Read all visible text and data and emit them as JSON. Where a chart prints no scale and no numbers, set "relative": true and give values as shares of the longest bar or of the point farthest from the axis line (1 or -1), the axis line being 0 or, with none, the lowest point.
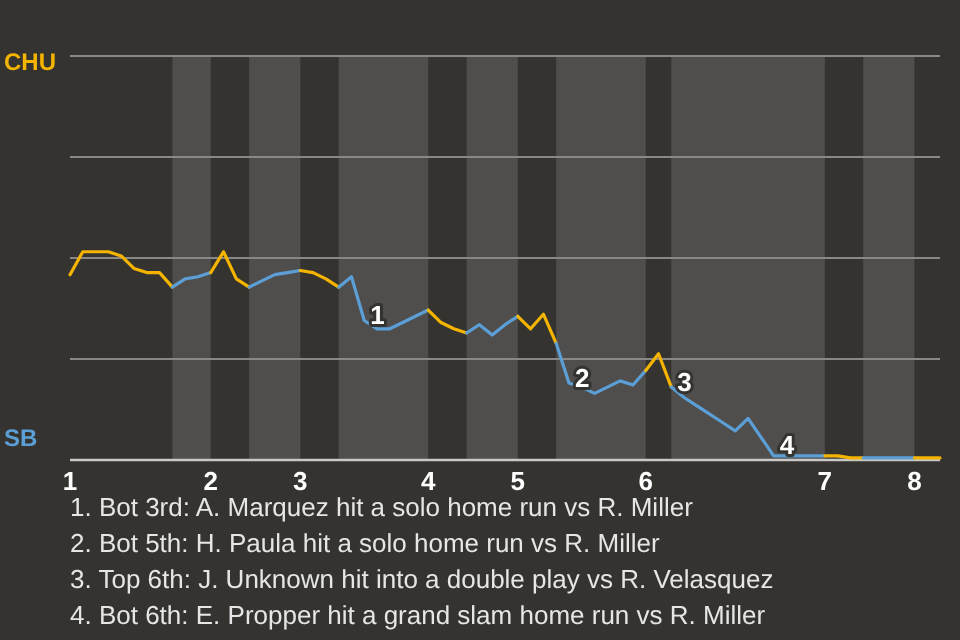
{
  "chart_data": {
    "type": "line",
    "relative": true,
    "marker": "none",
    "ref_lines": [
      {
        "axis": "y",
        "value": 0.485,
        "color": "#8a8886"
      },
      {
        "axis": "y",
        "value": 0.97,
        "color": "#8a8886"
      },
      {
        "axis": "y",
        "value": 1.455,
        "color": "#8a8886"
      },
      {
        "axis": "y",
        "value": 1.94,
        "color": "#8a8886"
      }
    ],
    "categories": [
      "1",
      null,
      null,
      null,
      null,
      null,
      null,
      null,
      null,
      null,
      null,
      "2",
      null,
      null,
      null,
      null,
      null,
      null,
      "3",
      null,
      null,
      null,
      null,
      null,
      null,
      null,
      null,
      null,
      "4",
      null,
      null,
      null,
      null,
      null,
      null,
      "5",
      null,
      null,
      null,
      null,
      null,
      null,
      null,
      null,
      null,
      "6",
      null,
      null,
      null,
      null,
      null,
      null,
      null,
      null,
      null,
      null,
      null,
      null,
      null,
      "7",
      null,
      null,
      null,
      null,
      null,
      null,
      "8",
      null,
      null
    ],
    "series": [
      {
        "name": "CHU",
        "color": "#f5b400",
        "values": [
          0.89,
          1,
          1,
          1,
          0.98,
          0.92,
          0.9,
          0.9,
          0.83,
          null,
          null,
          null,
          null,
          null,
          null,
          null,
          null,
          null,
          null,
          null,
          null,
          null,
          null,
          null,
          null,
          null,
          null,
          null,
          null,
          null,
          null,
          null,
          null,
          null,
          null,
          null,
          null,
          null,
          null,
          null,
          null,
          null,
          null,
          null,
          null,
          null,
          null,
          null,
          null,
          null,
          null,
          null,
          null,
          null,
          null,
          null,
          null,
          null,
          null,
          null,
          null,
          null,
          null,
          null,
          null,
          null,
          null,
          null,
          null
        ]
      },
      {
        "name": "SB",
        "color": "#5b9fd6",
        "values": [
          null,
          null,
          null,
          null,
          null,
          null,
          null,
          null,
          0.83,
          0.87,
          0.88,
          0.9,
          null,
          null,
          null,
          null,
          null,
          null,
          null,
          null,
          null,
          null,
          null,
          null,
          null,
          null,
          null,
          null,
          null,
          null,
          null,
          null,
          null,
          null,
          null,
          null,
          null,
          null,
          null,
          null,
          null,
          null,
          null,
          null,
          null,
          null,
          null,
          null,
          null,
          null,
          null,
          null,
          null,
          null,
          null,
          null,
          null,
          null,
          null,
          null,
          null,
          null,
          null,
          null,
          null,
          null,
          null,
          null,
          null
        ]
      },
      {
        "color": "#f5b400",
        "values": [
          null,
          null,
          null,
          null,
          null,
          null,
          null,
          null,
          null,
          null,
          null,
          0.9,
          1,
          0.87,
          0.83,
          null,
          null,
          null,
          null,
          null,
          null,
          null,
          null,
          null,
          null,
          null,
          null,
          null,
          null,
          null,
          null,
          null,
          null,
          null,
          null,
          null,
          null,
          null,
          null,
          null,
          null,
          null,
          null,
          null,
          null,
          null,
          null,
          null,
          null,
          null,
          null,
          null,
          null,
          null,
          null,
          null,
          null,
          null,
          null,
          null,
          null,
          null,
          null,
          null,
          null,
          null,
          null,
          null,
          null
        ]
      },
      {
        "color": "#5b9fd6",
        "values": [
          null,
          null,
          null,
          null,
          null,
          null,
          null,
          null,
          null,
          null,
          null,
          null,
          null,
          null,
          0.83,
          0.86,
          0.89,
          0.9,
          0.91,
          null,
          null,
          null,
          null,
          null,
          null,
          null,
          null,
          null,
          null,
          null,
          null,
          null,
          null,
          null,
          null,
          null,
          null,
          null,
          null,
          null,
          null,
          null,
          null,
          null,
          null,
          null,
          null,
          null,
          null,
          null,
          null,
          null,
          null,
          null,
          null,
          null,
          null,
          null,
          null,
          null,
          null,
          null,
          null,
          null,
          null,
          null,
          null,
          null,
          null
        ]
      },
      {
        "color": "#f5b400",
        "values": [
          null,
          null,
          null,
          null,
          null,
          null,
          null,
          null,
          null,
          null,
          null,
          null,
          null,
          null,
          null,
          null,
          null,
          null,
          0.91,
          0.9,
          0.87,
          0.83,
          null,
          null,
          null,
          null,
          null,
          null,
          null,
          null,
          null,
          null,
          null,
          null,
          null,
          null,
          null,
          null,
          null,
          null,
          null,
          null,
          null,
          null,
          null,
          null,
          null,
          null,
          null,
          null,
          null,
          null,
          null,
          null,
          null,
          null,
          null,
          null,
          null,
          null,
          null,
          null,
          null,
          null,
          null,
          null,
          null,
          null,
          null
        ]
      },
      {
        "color": "#5b9fd6",
        "values": [
          null,
          null,
          null,
          null,
          null,
          null,
          null,
          null,
          null,
          null,
          null,
          null,
          null,
          null,
          null,
          null,
          null,
          null,
          null,
          null,
          null,
          0.83,
          0.88,
          0.67,
          0.63,
          0.63,
          0.66,
          0.69,
          0.72,
          null,
          null,
          null,
          null,
          null,
          null,
          null,
          null,
          null,
          null,
          null,
          null,
          null,
          null,
          null,
          null,
          null,
          null,
          null,
          null,
          null,
          null,
          null,
          null,
          null,
          null,
          null,
          null,
          null,
          null,
          null,
          null,
          null,
          null,
          null,
          null,
          null,
          null,
          null,
          null
        ]
      },
      {
        "color": "#f5b400",
        "values": [
          null,
          null,
          null,
          null,
          null,
          null,
          null,
          null,
          null,
          null,
          null,
          null,
          null,
          null,
          null,
          null,
          null,
          null,
          null,
          null,
          null,
          null,
          null,
          null,
          null,
          null,
          null,
          null,
          0.72,
          0.66,
          0.63,
          0.61,
          null,
          null,
          null,
          null,
          null,
          null,
          null,
          null,
          null,
          null,
          null,
          null,
          null,
          null,
          null,
          null,
          null,
          null,
          null,
          null,
          null,
          null,
          null,
          null,
          null,
          null,
          null,
          null,
          null,
          null,
          null,
          null,
          null,
          null,
          null,
          null,
          null
        ]
      },
      {
        "color": "#5b9fd6",
        "values": [
          null,
          null,
          null,
          null,
          null,
          null,
          null,
          null,
          null,
          null,
          null,
          null,
          null,
          null,
          null,
          null,
          null,
          null,
          null,
          null,
          null,
          null,
          null,
          null,
          null,
          null,
          null,
          null,
          null,
          null,
          null,
          0.61,
          0.65,
          0.6,
          0.65,
          0.69,
          null,
          null,
          null,
          null,
          null,
          null,
          null,
          null,
          null,
          null,
          null,
          null,
          null,
          null,
          null,
          null,
          null,
          null,
          null,
          null,
          null,
          null,
          null,
          null,
          null,
          null,
          null,
          null,
          null,
          null,
          null,
          null,
          null
        ]
      },
      {
        "color": "#f5b400",
        "values": [
          null,
          null,
          null,
          null,
          null,
          null,
          null,
          null,
          null,
          null,
          null,
          null,
          null,
          null,
          null,
          null,
          null,
          null,
          null,
          null,
          null,
          null,
          null,
          null,
          null,
          null,
          null,
          null,
          null,
          null,
          null,
          null,
          null,
          null,
          null,
          0.69,
          0.63,
          0.7,
          0.56,
          null,
          null,
          null,
          null,
          null,
          null,
          null,
          null,
          null,
          null,
          null,
          null,
          null,
          null,
          null,
          null,
          null,
          null,
          null,
          null,
          null,
          null,
          null,
          null,
          null,
          null,
          null,
          null,
          null,
          null
        ]
      },
      {
        "color": "#5b9fd6",
        "values": [
          null,
          null,
          null,
          null,
          null,
          null,
          null,
          null,
          null,
          null,
          null,
          null,
          null,
          null,
          null,
          null,
          null,
          null,
          null,
          null,
          null,
          null,
          null,
          null,
          null,
          null,
          null,
          null,
          null,
          null,
          null,
          null,
          null,
          null,
          null,
          null,
          null,
          null,
          0.56,
          0.37,
          0.35,
          0.32,
          0.35,
          0.38,
          0.36,
          0.43,
          null,
          null,
          null,
          null,
          null,
          null,
          null,
          null,
          null,
          null,
          null,
          null,
          null,
          null,
          null,
          null,
          null,
          null,
          null,
          null,
          null,
          null,
          null
        ]
      },
      {
        "color": "#f5b400",
        "values": [
          null,
          null,
          null,
          null,
          null,
          null,
          null,
          null,
          null,
          null,
          null,
          null,
          null,
          null,
          null,
          null,
          null,
          null,
          null,
          null,
          null,
          null,
          null,
          null,
          null,
          null,
          null,
          null,
          null,
          null,
          null,
          null,
          null,
          null,
          null,
          null,
          null,
          null,
          null,
          null,
          null,
          null,
          null,
          null,
          null,
          0.43,
          0.51,
          0.35,
          null,
          null,
          null,
          null,
          null,
          null,
          null,
          null,
          null,
          null,
          null,
          null,
          null,
          null,
          null,
          null,
          null,
          null,
          null,
          null,
          null
        ]
      },
      {
        "color": "#5b9fd6",
        "values": [
          null,
          null,
          null,
          null,
          null,
          null,
          null,
          null,
          null,
          null,
          null,
          null,
          null,
          null,
          null,
          null,
          null,
          null,
          null,
          null,
          null,
          null,
          null,
          null,
          null,
          null,
          null,
          null,
          null,
          null,
          null,
          null,
          null,
          null,
          null,
          null,
          null,
          null,
          null,
          null,
          null,
          null,
          null,
          null,
          null,
          null,
          null,
          0.35,
          0.3,
          0.26,
          0.22,
          0.18,
          0.14,
          0.2,
          0.11,
          0.02,
          0.02,
          0.02,
          0.02,
          0.02,
          null,
          null,
          null,
          null,
          null,
          null,
          null,
          null,
          null
        ]
      },
      {
        "color": "#f5b400",
        "values": [
          null,
          null,
          null,
          null,
          null,
          null,
          null,
          null,
          null,
          null,
          null,
          null,
          null,
          null,
          null,
          null,
          null,
          null,
          null,
          null,
          null,
          null,
          null,
          null,
          null,
          null,
          null,
          null,
          null,
          null,
          null,
          null,
          null,
          null,
          null,
          null,
          null,
          null,
          null,
          null,
          null,
          null,
          null,
          null,
          null,
          null,
          null,
          null,
          null,
          null,
          null,
          null,
          null,
          null,
          null,
          null,
          null,
          null,
          null,
          0.02,
          0.02,
          0.01,
          0.01,
          null,
          null,
          null,
          null,
          null,
          null
        ]
      },
      {
        "color": "#5b9fd6",
        "values": [
          null,
          null,
          null,
          null,
          null,
          null,
          null,
          null,
          null,
          null,
          null,
          null,
          null,
          null,
          null,
          null,
          null,
          null,
          null,
          null,
          null,
          null,
          null,
          null,
          null,
          null,
          null,
          null,
          null,
          null,
          null,
          null,
          null,
          null,
          null,
          null,
          null,
          null,
          null,
          null,
          null,
          null,
          null,
          null,
          null,
          null,
          null,
          null,
          null,
          null,
          null,
          null,
          null,
          null,
          null,
          null,
          null,
          null,
          null,
          null,
          null,
          null,
          0.01,
          0.01,
          0.01,
          0.01,
          0.01,
          null,
          null
        ]
      },
      {
        "color": "#f5b400",
        "values": [
          null,
          null,
          null,
          null,
          null,
          null,
          null,
          null,
          null,
          null,
          null,
          null,
          null,
          null,
          null,
          null,
          null,
          null,
          null,
          null,
          null,
          null,
          null,
          null,
          null,
          null,
          null,
          null,
          null,
          null,
          null,
          null,
          null,
          null,
          null,
          null,
          null,
          null,
          null,
          null,
          null,
          null,
          null,
          null,
          null,
          null,
          null,
          null,
          null,
          null,
          null,
          null,
          null,
          null,
          null,
          null,
          null,
          null,
          null,
          null,
          null,
          null,
          null,
          null,
          null,
          null,
          0.01,
          0.01,
          0.01
        ]
      }
    ],
    "annotations": [
      {
        "text": "1",
        "y": 0.67
      },
      {
        "text": "2",
        "y": 0.37
      },
      {
        "text": "3",
        "y": 0.35
      },
      {
        "text": "4",
        "y": 0.02
      },
      "1. Bot 3rd: A. Marquez hit a solo home run vs R. Miller",
      "2. Bot 5th: H. Paula hit a solo home run vs R. Miller",
      "3. Top 6th: J. Unknown hit into a double play vs R. Velasquez",
      "4. Bot 6th: E. Propper hit a grand slam home run vs R. Miller"
    ]
  }
}
